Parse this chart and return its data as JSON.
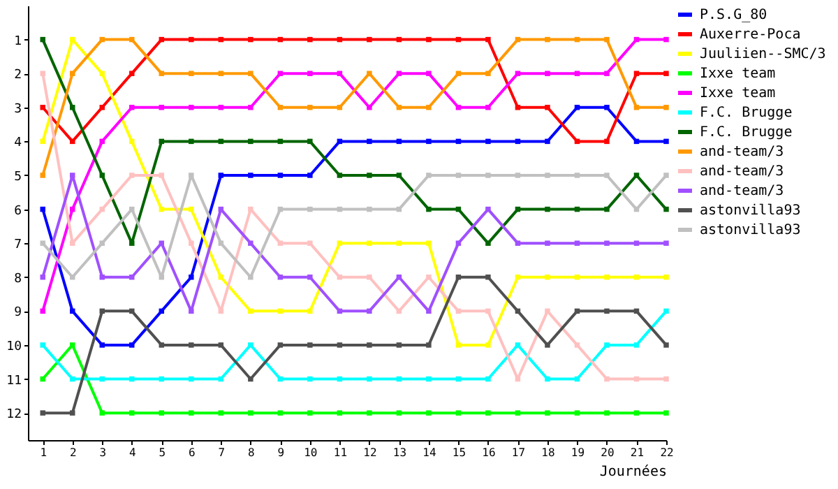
{
  "chart_data": {
    "type": "line",
    "xlabel": "Journées",
    "x": [
      1,
      2,
      3,
      4,
      5,
      6,
      7,
      8,
      9,
      10,
      11,
      12,
      13,
      14,
      15,
      16,
      17,
      18,
      19,
      20,
      21,
      22
    ],
    "xlim": [
      0.5,
      22
    ],
    "xticks": [
      1,
      2,
      3,
      4,
      5,
      6,
      7,
      8,
      9,
      10,
      11,
      12,
      13,
      14,
      15,
      16,
      17,
      18,
      19,
      20,
      21,
      22
    ],
    "ylim": [
      12.8,
      0
    ],
    "yticks": [
      1,
      2,
      3,
      4,
      5,
      6,
      7,
      8,
      9,
      10,
      11,
      12
    ],
    "grid": false,
    "legend": "right",
    "marker": "square",
    "line_style": "solid",
    "series": [
      {
        "name": "P.S.G_80",
        "color": "#0000ff",
        "values": [
          6,
          9,
          10,
          10,
          9,
          8,
          5,
          5,
          5,
          5,
          4,
          4,
          4,
          4,
          4,
          4,
          4,
          4,
          3,
          3,
          4,
          4
        ]
      },
      {
        "name": "Auxerre-Poca",
        "color": "#ff0000",
        "values": [
          3,
          4,
          3,
          2,
          1,
          1,
          1,
          1,
          1,
          1,
          1,
          1,
          1,
          1,
          1,
          1,
          3,
          3,
          4,
          4,
          2,
          2
        ]
      },
      {
        "name": "Juuliien--SMC/3",
        "color": "#ffff00",
        "values": [
          4,
          1,
          2,
          4,
          6,
          6,
          8,
          9,
          9,
          9,
          7,
          7,
          7,
          7,
          10,
          10,
          8,
          8,
          8,
          8,
          8,
          8
        ]
      },
      {
        "name": "Ixxe team",
        "color": "#00ff00",
        "values": [
          11,
          10,
          12,
          12,
          12,
          12,
          12,
          12,
          12,
          12,
          12,
          12,
          12,
          12,
          12,
          12,
          12,
          12,
          12,
          12,
          12,
          12
        ]
      },
      {
        "name": "Ixxe team",
        "color": "#ff00ff",
        "values": [
          9,
          6,
          4,
          3,
          3,
          3,
          3,
          3,
          2,
          2,
          2,
          3,
          2,
          2,
          3,
          3,
          2,
          2,
          2,
          2,
          1,
          1
        ]
      },
      {
        "name": "F.C. Brugge",
        "color": "#00ffff",
        "values": [
          10,
          11,
          11,
          11,
          11,
          11,
          11,
          10,
          11,
          11,
          11,
          11,
          11,
          11,
          11,
          11,
          10,
          11,
          11,
          10,
          10,
          9
        ]
      },
      {
        "name": "F.C. Brugge",
        "color": "#006400",
        "values": [
          1,
          3,
          5,
          7,
          4,
          4,
          4,
          4,
          4,
          4,
          5,
          5,
          5,
          6,
          6,
          7,
          6,
          6,
          6,
          6,
          5,
          6
        ]
      },
      {
        "name": "and-team/3",
        "color": "#ff9900",
        "values": [
          5,
          2,
          1,
          1,
          2,
          2,
          2,
          2,
          3,
          3,
          3,
          2,
          3,
          3,
          2,
          2,
          1,
          1,
          1,
          1,
          3,
          3
        ]
      },
      {
        "name": "and-team/3",
        "color": "#ffc0c0",
        "values": [
          2,
          7,
          6,
          5,
          5,
          7,
          9,
          6,
          7,
          7,
          8,
          8,
          9,
          8,
          9,
          9,
          11,
          9,
          10,
          11,
          11,
          11
        ]
      },
      {
        "name": "and-team/3",
        "color": "#a050ff",
        "values": [
          8,
          5,
          8,
          8,
          7,
          9,
          6,
          7,
          8,
          8,
          9,
          9,
          8,
          9,
          7,
          6,
          7,
          7,
          7,
          7,
          7,
          7
        ]
      },
      {
        "name": "astonvilla93",
        "color": "#505050",
        "values": [
          12,
          12,
          9,
          9,
          10,
          10,
          10,
          11,
          10,
          10,
          10,
          10,
          10,
          10,
          8,
          8,
          9,
          10,
          9,
          9,
          9,
          10
        ]
      },
      {
        "name": "astonvilla93",
        "color": "#c0c0c0",
        "values": [
          7,
          8,
          7,
          6,
          8,
          5,
          7,
          8,
          6,
          6,
          6,
          6,
          6,
          5,
          5,
          5,
          5,
          5,
          5,
          5,
          6,
          5
        ]
      }
    ]
  }
}
